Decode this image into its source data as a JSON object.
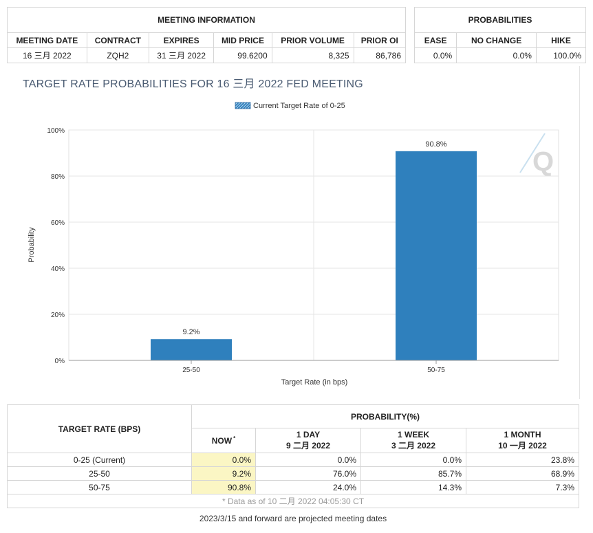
{
  "meeting_info": {
    "header": "MEETING INFORMATION",
    "columns": [
      "MEETING DATE",
      "CONTRACT",
      "EXPIRES",
      "MID PRICE",
      "PRIOR VOLUME",
      "PRIOR OI"
    ],
    "row": [
      "16 三月 2022",
      "ZQH2",
      "31 三月 2022",
      "99.6200",
      "8,325",
      "86,786"
    ]
  },
  "probabilities": {
    "header": "PROBABILITIES",
    "columns": [
      "EASE",
      "NO CHANGE",
      "HIKE"
    ],
    "row": [
      "0.0%",
      "0.0%",
      "100.0%"
    ]
  },
  "chart_title": "TARGET RATE PROBABILITIES FOR 16 三月 2022 FED MEETING",
  "logo_text": "Q",
  "chart_data": {
    "type": "bar",
    "categories": [
      "25-50",
      "50-75"
    ],
    "values": [
      9.2,
      90.8
    ],
    "data_labels": [
      "9.2%",
      "90.8%"
    ],
    "series": [
      {
        "name": "Current Target Rate of 0-25",
        "values": [
          9.2,
          90.8
        ]
      }
    ],
    "xlabel": "Target Rate (in bps)",
    "ylabel": "Probability",
    "yticks": [
      "0%",
      "20%",
      "40%",
      "60%",
      "80%",
      "100%"
    ],
    "ylim": [
      0,
      100
    ],
    "grid": true,
    "legend_position": "top-center",
    "color": "#2f80bd"
  },
  "bottom_table": {
    "target_header": "TARGET RATE (BPS)",
    "prob_header": "PROBABILITY(%)",
    "now_label": "NOW",
    "now_mark": "*",
    "periods": [
      {
        "label": "1 DAY",
        "date": "9 二月 2022"
      },
      {
        "label": "1 WEEK",
        "date": "3 二月 2022"
      },
      {
        "label": "1 MONTH",
        "date": "10 一月 2022"
      }
    ],
    "rows": [
      {
        "rate": "0-25 (Current)",
        "now": "0.0%",
        "day": "0.0%",
        "week": "0.0%",
        "month": "23.8%"
      },
      {
        "rate": "25-50",
        "now": "9.2%",
        "day": "76.0%",
        "week": "85.7%",
        "month": "68.9%"
      },
      {
        "rate": "50-75",
        "now": "90.8%",
        "day": "24.0%",
        "week": "14.3%",
        "month": "7.3%"
      }
    ],
    "data_note": "* Data as of 10 二月 2022 04:05:30 CT"
  },
  "footer_note": "2023/3/15 and forward are projected meeting dates"
}
